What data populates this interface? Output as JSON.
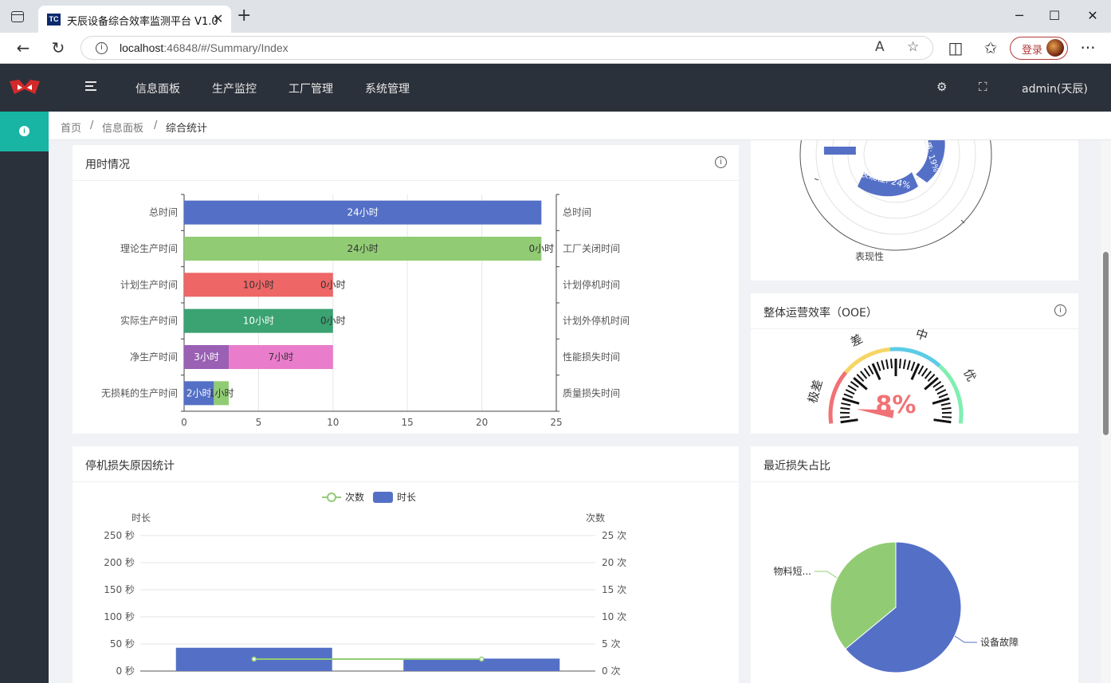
{
  "browser": {
    "tab_title": "天辰设备综合效率监测平台 V1.0",
    "favicon_text": "TC",
    "url_host": "localhost",
    "url_rest": ":46848/#/Summary/Index",
    "login_label": "登录"
  },
  "nav": {
    "items": [
      "信息面板",
      "生产监控",
      "工厂管理",
      "系统管理"
    ],
    "user": "admin(天辰)"
  },
  "breadcrumb": {
    "home": "首页",
    "section": "信息面板",
    "current": "综合统计"
  },
  "time_card": {
    "title": "用时情况",
    "chart_data": {
      "type": "bar",
      "orientation": "horizontal",
      "stacked": true,
      "categories": [
        "总时间",
        "理论生产时间",
        "计划生产时间",
        "实际生产时间",
        "净生产时间",
        "无损耗的生产时间"
      ],
      "right_categories": [
        "总时间",
        "工厂关闭时间",
        "计划停机时间",
        "计划外停机时间",
        "性能损失时间",
        "质量损失时间"
      ],
      "series": [
        {
          "values": [
            24,
            24,
            10,
            10,
            3,
            2
          ],
          "colors": [
            "#5470c6",
            "#91cc75",
            "#ee6666",
            "#3ba272",
            "#9a60b4",
            "#5470c6"
          ],
          "labels": [
            "24小时",
            "24小时",
            "10小时",
            "10小时",
            "3小时",
            "2小时"
          ]
        },
        {
          "values": [
            0,
            0,
            0,
            0,
            7,
            1
          ],
          "colors": [
            "#5470c6",
            "#91cc75",
            "#ee6666",
            "#3ba272",
            "#ea7ccc",
            "#91cc75"
          ],
          "labels": [
            "",
            "0小时",
            "0小时",
            "0小时",
            "7小时",
            "1小时"
          ]
        }
      ],
      "xlim": [
        0,
        25
      ],
      "xticks": [
        0,
        5,
        10,
        15,
        20,
        25
      ]
    }
  },
  "downtime_card": {
    "title": "停机损失原因统计",
    "legend": [
      "次数",
      "时长"
    ],
    "chart_data": {
      "type": "bar",
      "left_axis_name": "时长",
      "right_axis_name": "次数",
      "left_ticks": [
        "0 秒",
        "50 秒",
        "100 秒",
        "150 秒",
        "200 秒",
        "250 秒"
      ],
      "right_ticks": [
        "0 次",
        "5 次",
        "10 次",
        "15 次",
        "20 次",
        "25 次"
      ],
      "ylim": [
        0,
        250
      ],
      "y2lim": [
        0,
        25
      ],
      "series": [
        {
          "name": "时长",
          "type": "bar",
          "values": [
            43,
            23
          ]
        },
        {
          "name": "次数",
          "type": "line",
          "values": [
            2.2,
            2.2
          ]
        }
      ]
    }
  },
  "polar_card": {
    "chart_data": {
      "type": "polar-bar",
      "visible_labels": [
        "表现性: 24%",
        "质: 19%"
      ],
      "axis_label": "表现性"
    }
  },
  "ooe_card": {
    "title": "整体运营效率（OOE）",
    "chart_data": {
      "type": "gauge",
      "value": 8,
      "value_text": "8%",
      "bands": [
        "极差",
        "差",
        "中",
        "优"
      ]
    }
  },
  "loss_card": {
    "title": "最近损失占比",
    "chart_data": {
      "type": "pie",
      "labels": [
        "设备故障",
        "物料短..."
      ],
      "values": [
        64,
        36
      ]
    }
  },
  "colors": {
    "sidebar": "#2b313a",
    "accent": "#19b5a4",
    "blue": "#5470c6",
    "green": "#91cc75",
    "red": "#ee6666"
  }
}
